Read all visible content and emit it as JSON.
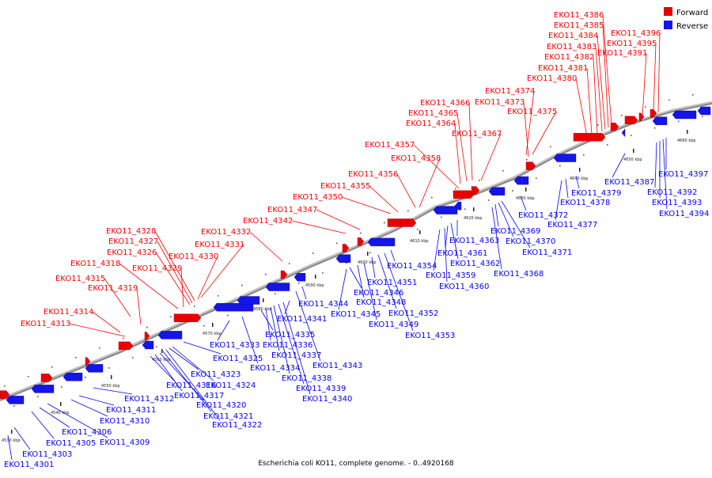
{
  "legend": {
    "forward": "Forward",
    "reverse": "Reverse"
  },
  "colors": {
    "forward": "#ff0000",
    "reverse": "#0000ff",
    "forward_fill": "#e80000",
    "reverse_fill": "#1515e8",
    "backbone": "#8a8a8a"
  },
  "caption": "Escherichia coli KO11, complete genome. - 0..4920168",
  "ticks": [
    "4530 kbp",
    "4540 kbp",
    "4550 kbp",
    "4560 kbp",
    "4570 kbp",
    "4580 kbp",
    "4590 kbp",
    "4600 kbp",
    "4610 kbp",
    "4620 kbp",
    "4630 kbp",
    "4640 kbp",
    "4650 kbp",
    "4660 kbp"
  ],
  "forward_genes": [
    "EKO11_4313",
    "EKO11_4314",
    "EKO11_4319",
    "EKO11_4315",
    "EKO11_4318",
    "EKO11_4329",
    "EKO11_4326",
    "EKO11_4327",
    "EKO11_4328",
    "EKO11_4330",
    "EKO11_4331",
    "EKO11_4332",
    "EKO11_4342",
    "EKO11_4347",
    "EKO11_4350",
    "EKO11_4355",
    "EKO11_4356",
    "EKO11_4358",
    "EKO11_4357",
    "EKO11_4367",
    "EKO11_4364",
    "EKO11_4365",
    "EKO11_4366",
    "EKO11_4375",
    "EKO11_4373",
    "EKO11_4374",
    "EKO11_4380",
    "EKO11_4381",
    "EKO11_4382",
    "EKO11_4383",
    "EKO11_4384",
    "EKO11_4385",
    "EKO11_4386",
    "EKO11_4391",
    "EKO11_4395",
    "EKO11_4396"
  ],
  "reverse_genes": [
    "EKO11_4301",
    "EKO11_4303",
    "EKO11_4305",
    "EKO11_4306",
    "EKO11_4309",
    "EKO11_4310",
    "EKO11_4311",
    "EKO11_4312",
    "EKO11_4316",
    "EKO11_4317",
    "EKO11_4320",
    "EKO11_4321",
    "EKO11_4322",
    "EKO11_4323",
    "EKO11_4324",
    "EKO11_4325",
    "EKO11_4333",
    "EKO11_4334",
    "EKO11_4335",
    "EKO11_4336",
    "EKO11_4337",
    "EKO11_4338",
    "EKO11_4339",
    "EKO11_4340",
    "EKO11_4341",
    "EKO11_4343",
    "EKO11_4344",
    "EKO11_4345",
    "EKO11_4346",
    "EKO11_4348",
    "EKO11_4349",
    "EKO11_4351",
    "EKO11_4352",
    "EKO11_4353",
    "EKO11_4354",
    "EKO11_4359",
    "EKO11_4360",
    "EKO11_4361",
    "EKO11_4362",
    "EKO11_4363",
    "EKO11_4368",
    "EKO11_4369",
    "EKO11_4370",
    "EKO11_4371",
    "EKO11_4372",
    "EKO11_4377",
    "EKO11_4378",
    "EKO11_4379",
    "EKO11_4387",
    "EKO11_4392",
    "EKO11_4393",
    "EKO11_4394",
    "EKO11_4397"
  ]
}
